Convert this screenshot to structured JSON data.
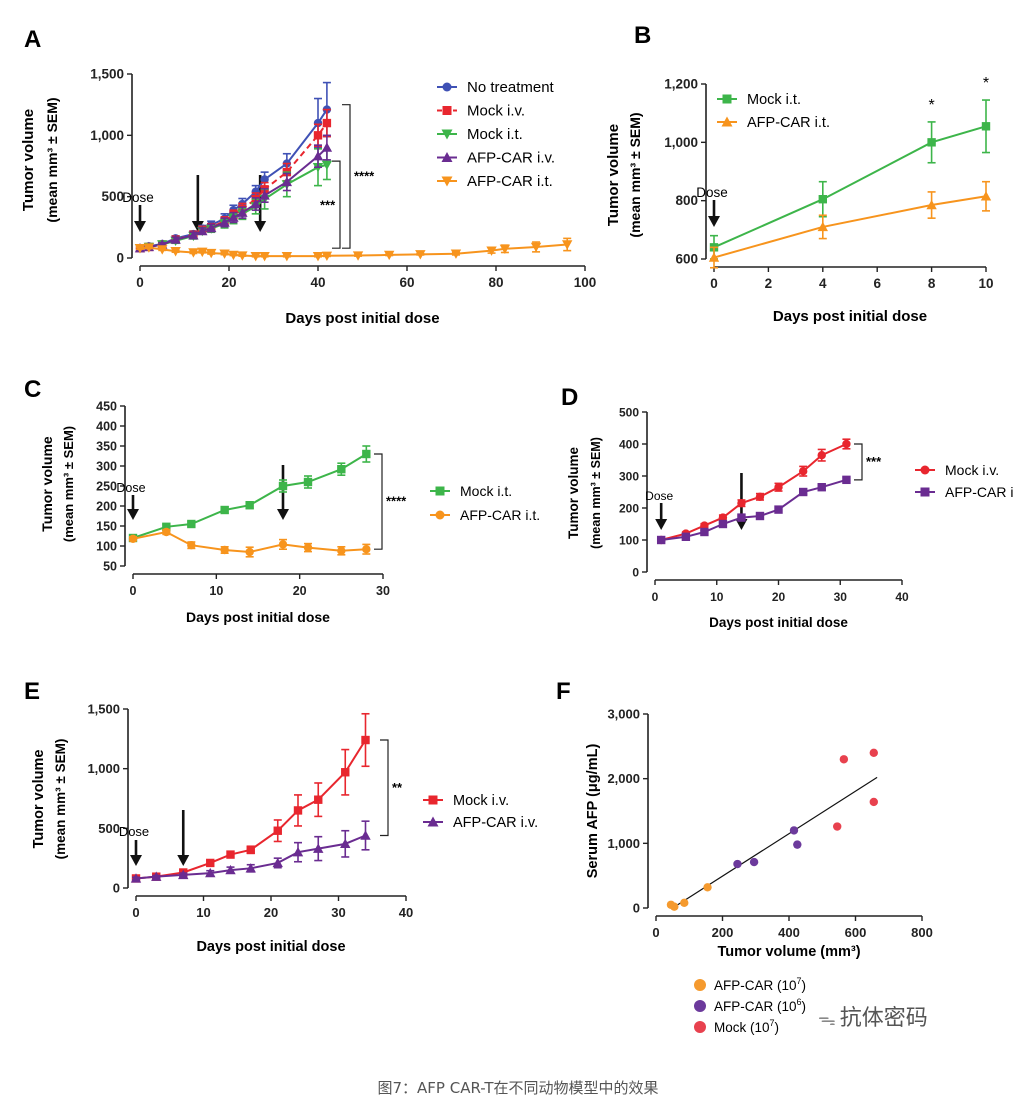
{
  "caption": "图7：AFP CAR-T在不同动物模型中的效果",
  "watermark": "抗体密码",
  "colors": {
    "blue": "#3F51B5",
    "red": "#E8262E",
    "green": "#3DB54A",
    "purple": "#6A2C91",
    "orange": "#F7941D",
    "mockF": "#E8414E",
    "orangeF": "#F59A2E",
    "purpleF": "#6C3A9C"
  },
  "chart_data": [
    {
      "panel": "A",
      "type": "line",
      "xlabel": "Days post initial dose",
      "ylabel": "Tumor volume",
      "ylabel2": "(mean mm³ ± SEM)",
      "xlim": [
        0,
        100
      ],
      "ylim": [
        0,
        1500
      ],
      "xticks": [
        0,
        20,
        40,
        60,
        80,
        100
      ],
      "xtick_labels": [
        "0",
        "20",
        "40",
        "60",
        "80",
        "100"
      ],
      "yticks": [
        0,
        500,
        1000,
        1500
      ],
      "ytick_labels": [
        "0",
        "500",
        "1,000",
        "1,500"
      ],
      "dose_label": "Dose",
      "dose_days": [
        0,
        13,
        27
      ],
      "significance": [
        {
          "label": "****",
          "y_from": 80,
          "y_to": 1250
        },
        {
          "label": "***",
          "y_from": 80,
          "y_to": 790
        }
      ],
      "series": [
        {
          "name": "No treatment",
          "color": "blue",
          "marker": "circle",
          "x": [
            0,
            2,
            5,
            8,
            12,
            14,
            16,
            19,
            21,
            23,
            26,
            28,
            33,
            40,
            42
          ],
          "y": [
            80,
            95,
            115,
            160,
            195,
            240,
            270,
            320,
            390,
            440,
            540,
            640,
            770,
            1100,
            1210
          ],
          "err": [
            10,
            10,
            15,
            20,
            25,
            25,
            30,
            40,
            40,
            45,
            50,
            60,
            80,
            200,
            220
          ]
        },
        {
          "name": "Mock i.v.",
          "color": "red",
          "marker": "square",
          "dashed": true,
          "x": [
            0,
            2,
            5,
            8,
            12,
            14,
            16,
            19,
            21,
            23,
            26,
            28,
            33,
            40,
            42
          ],
          "y": [
            80,
            90,
            110,
            150,
            190,
            230,
            250,
            300,
            350,
            400,
            480,
            560,
            700,
            1000,
            1100
          ],
          "err": [
            10,
            10,
            15,
            20,
            25,
            25,
            30,
            35,
            40,
            45,
            50,
            55,
            70,
            90,
            110
          ]
        },
        {
          "name": "Mock i.t.",
          "color": "green",
          "marker": "tri-down",
          "x": [
            0,
            2,
            5,
            8,
            12,
            14,
            16,
            19,
            21,
            23,
            26,
            28,
            33,
            40,
            42
          ],
          "y": [
            80,
            90,
            110,
            140,
            180,
            220,
            240,
            280,
            320,
            360,
            420,
            480,
            600,
            740,
            760
          ],
          "err": [
            10,
            10,
            15,
            20,
            25,
            25,
            30,
            35,
            40,
            45,
            60,
            80,
            100,
            150,
            120
          ]
        },
        {
          "name": "AFP-CAR i.v.",
          "color": "purple",
          "marker": "tri-up",
          "x": [
            0,
            2,
            5,
            8,
            12,
            14,
            16,
            19,
            21,
            23,
            26,
            28,
            33,
            40,
            42
          ],
          "y": [
            80,
            90,
            110,
            150,
            185,
            220,
            245,
            290,
            330,
            370,
            440,
            510,
            620,
            830,
            900
          ],
          "err": [
            10,
            10,
            15,
            20,
            25,
            25,
            30,
            35,
            40,
            45,
            50,
            55,
            70,
            90,
            100
          ]
        },
        {
          "name": "AFP-CAR i.t.",
          "color": "orange",
          "marker": "tri-down",
          "x": [
            0,
            2,
            5,
            8,
            12,
            14,
            16,
            19,
            21,
            23,
            26,
            28,
            33,
            40,
            42,
            49,
            56,
            63,
            71,
            79,
            82,
            89,
            96
          ],
          "y": [
            80,
            85,
            70,
            55,
            45,
            50,
            40,
            35,
            25,
            20,
            15,
            15,
            15,
            15,
            18,
            20,
            25,
            30,
            35,
            60,
            75,
            90,
            110
          ],
          "err": [
            8,
            8,
            8,
            8,
            8,
            8,
            8,
            8,
            5,
            5,
            5,
            5,
            5,
            5,
            5,
            5,
            5,
            5,
            10,
            20,
            30,
            40,
            50
          ]
        }
      ]
    },
    {
      "panel": "B",
      "type": "line",
      "xlabel": "Days post initial dose",
      "ylabel": "Tumor volume",
      "ylabel2": "(mean mm³ ± SEM)",
      "xlim": [
        0,
        10
      ],
      "ylim": [
        600,
        1200
      ],
      "xticks": [
        0,
        2,
        4,
        6,
        8,
        10
      ],
      "xtick_labels": [
        "0",
        "2",
        "4",
        "6",
        "8",
        "10"
      ],
      "yticks": [
        600,
        800,
        1000,
        1200
      ],
      "ytick_labels": [
        "600",
        "800",
        "1,000",
        "1,200"
      ],
      "dose_label": "Dose",
      "dose_days": [
        0
      ],
      "stars": [
        {
          "x": 8,
          "label": "*"
        },
        {
          "x": 10,
          "label": "*"
        }
      ],
      "series": [
        {
          "name": "Mock i.t.",
          "color": "green",
          "marker": "square",
          "x": [
            0,
            4,
            8,
            10
          ],
          "y": [
            640,
            805,
            1000,
            1055
          ],
          "err": [
            40,
            60,
            70,
            90
          ]
        },
        {
          "name": "AFP-CAR i.t.",
          "color": "orange",
          "marker": "tri-up",
          "x": [
            0,
            4,
            8,
            10
          ],
          "y": [
            605,
            710,
            785,
            815
          ],
          "err": [
            35,
            40,
            45,
            50
          ]
        }
      ]
    },
    {
      "panel": "C",
      "type": "line",
      "xlabel": "Days post initial dose",
      "ylabel": "Tumor volume",
      "ylabel2": "(mean mm³ ± SEM)",
      "xlim": [
        0,
        30
      ],
      "ylim": [
        50,
        450
      ],
      "xticks": [
        0,
        10,
        20,
        30
      ],
      "xtick_labels": [
        "0",
        "10",
        "20",
        "30"
      ],
      "yticks": [
        50,
        100,
        150,
        200,
        250,
        300,
        350,
        400,
        450
      ],
      "ytick_labels": [
        "50",
        "100",
        "150",
        "200",
        "250",
        "300",
        "350",
        "400",
        "450"
      ],
      "dose_label": "Dose",
      "dose_days": [
        0,
        18
      ],
      "significance": [
        {
          "label": "****",
          "y_from": 92,
          "y_to": 330
        }
      ],
      "series": [
        {
          "name": "Mock i.t.",
          "color": "green",
          "marker": "square",
          "x": [
            0,
            4,
            7,
            11,
            14,
            18,
            21,
            25,
            28
          ],
          "y": [
            120,
            148,
            155,
            190,
            202,
            250,
            260,
            292,
            330
          ],
          "err": [
            5,
            6,
            6,
            8,
            8,
            15,
            15,
            15,
            20
          ]
        },
        {
          "name": "AFP-CAR i.t.",
          "color": "orange",
          "marker": "circle",
          "x": [
            0,
            4,
            7,
            11,
            14,
            18,
            21,
            25,
            28
          ],
          "y": [
            118,
            135,
            102,
            90,
            85,
            104,
            96,
            88,
            92
          ],
          "err": [
            5,
            6,
            8,
            8,
            12,
            12,
            10,
            10,
            12
          ]
        }
      ]
    },
    {
      "panel": "D",
      "type": "line",
      "xlabel": "Days post initial dose",
      "ylabel": "Tumor volume",
      "ylabel2": "(mean mm³ ± SEM)",
      "xlim": [
        0,
        40
      ],
      "ylim": [
        0,
        500
      ],
      "xticks": [
        0,
        10,
        20,
        30,
        40
      ],
      "xtick_labels": [
        "0",
        "10",
        "20",
        "30",
        "40"
      ],
      "yticks": [
        0,
        100,
        200,
        300,
        400,
        500
      ],
      "ytick_labels": [
        "0",
        "100",
        "200",
        "300",
        "400",
        "500"
      ],
      "dose_label": "Dose",
      "dose_days": [
        1,
        14
      ],
      "significance": [
        {
          "label": "***",
          "y_from": 288,
          "y_to": 400
        }
      ],
      "series": [
        {
          "name": "Mock i.v.",
          "color": "red",
          "marker": "circle",
          "x": [
            1,
            5,
            8,
            11,
            14,
            17,
            20,
            24,
            27,
            31
          ],
          "y": [
            100,
            120,
            145,
            170,
            215,
            235,
            265,
            315,
            365,
            400
          ],
          "err": [
            4,
            5,
            6,
            8,
            10,
            10,
            12,
            15,
            18,
            15
          ]
        },
        {
          "name": "AFP-CAR i",
          "color": "purple",
          "marker": "square",
          "x": [
            1,
            5,
            8,
            11,
            14,
            17,
            20,
            24,
            27,
            31
          ],
          "y": [
            100,
            110,
            125,
            150,
            170,
            175,
            195,
            250,
            265,
            288
          ],
          "err": [
            4,
            4,
            5,
            6,
            6,
            6,
            8,
            8,
            8,
            8
          ]
        }
      ]
    },
    {
      "panel": "E",
      "type": "line",
      "xlabel": "Days post initial dose",
      "ylabel": "Tumor volume",
      "ylabel2": "(mean mm³ ± SEM)",
      "xlim": [
        0,
        40
      ],
      "ylim": [
        0,
        1500
      ],
      "xticks": [
        0,
        10,
        20,
        30,
        40
      ],
      "xtick_labels": [
        "0",
        "10",
        "20",
        "30",
        "40"
      ],
      "yticks": [
        0,
        500,
        1000,
        1500
      ],
      "ytick_labels": [
        "0",
        "500",
        "1,000",
        "1,500"
      ],
      "dose_label": "Dose",
      "dose_days": [
        0,
        7
      ],
      "significance": [
        {
          "label": "**",
          "y_from": 440,
          "y_to": 1240
        }
      ],
      "series": [
        {
          "name": "Mock i.v.",
          "color": "red",
          "marker": "square",
          "x": [
            0,
            3,
            7,
            11,
            14,
            17,
            21,
            24,
            27,
            31,
            34
          ],
          "y": [
            80,
            95,
            130,
            210,
            280,
            320,
            480,
            650,
            740,
            970,
            1240
          ],
          "err": [
            10,
            10,
            15,
            20,
            25,
            30,
            90,
            130,
            140,
            190,
            220
          ]
        },
        {
          "name": "AFP-CAR i.v.",
          "color": "purple",
          "marker": "tri-up",
          "x": [
            0,
            3,
            7,
            11,
            14,
            17,
            21,
            24,
            27,
            31,
            34
          ],
          "y": [
            80,
            95,
            110,
            125,
            150,
            165,
            210,
            300,
            330,
            370,
            440
          ],
          "err": [
            10,
            10,
            15,
            20,
            25,
            30,
            40,
            80,
            100,
            110,
            120
          ]
        }
      ]
    },
    {
      "panel": "F",
      "type": "scatter",
      "xlabel": "Tumor volume (mm³)",
      "ylabel": "Serum AFP (μg/mL)",
      "xlim": [
        0,
        800
      ],
      "ylim": [
        0,
        3000
      ],
      "xticks": [
        0,
        200,
        400,
        600,
        800
      ],
      "xtick_labels": [
        "0",
        "200",
        "400",
        "600",
        "800"
      ],
      "yticks": [
        0,
        1000,
        2000,
        3000
      ],
      "ytick_labels": [
        "0",
        "1,000",
        "2,000",
        "3,000"
      ],
      "fit_line": {
        "x": [
          50,
          665
        ],
        "y": [
          0,
          2020
        ]
      },
      "series": [
        {
          "name": "AFP-CAR",
          "exp": "7",
          "color": "orangeF",
          "x": [
            45,
            55,
            85,
            155
          ],
          "y": [
            50,
            20,
            80,
            320
          ]
        },
        {
          "name": "AFP-CAR",
          "exp": "6",
          "color": "purpleF",
          "x": [
            245,
            295,
            415,
            425
          ],
          "y": [
            680,
            710,
            1200,
            980
          ]
        },
        {
          "name": "Mock",
          "exp": "7",
          "color": "mockF",
          "x": [
            545,
            565,
            655,
            655
          ],
          "y": [
            1260,
            2300,
            2400,
            1640
          ]
        }
      ]
    }
  ]
}
